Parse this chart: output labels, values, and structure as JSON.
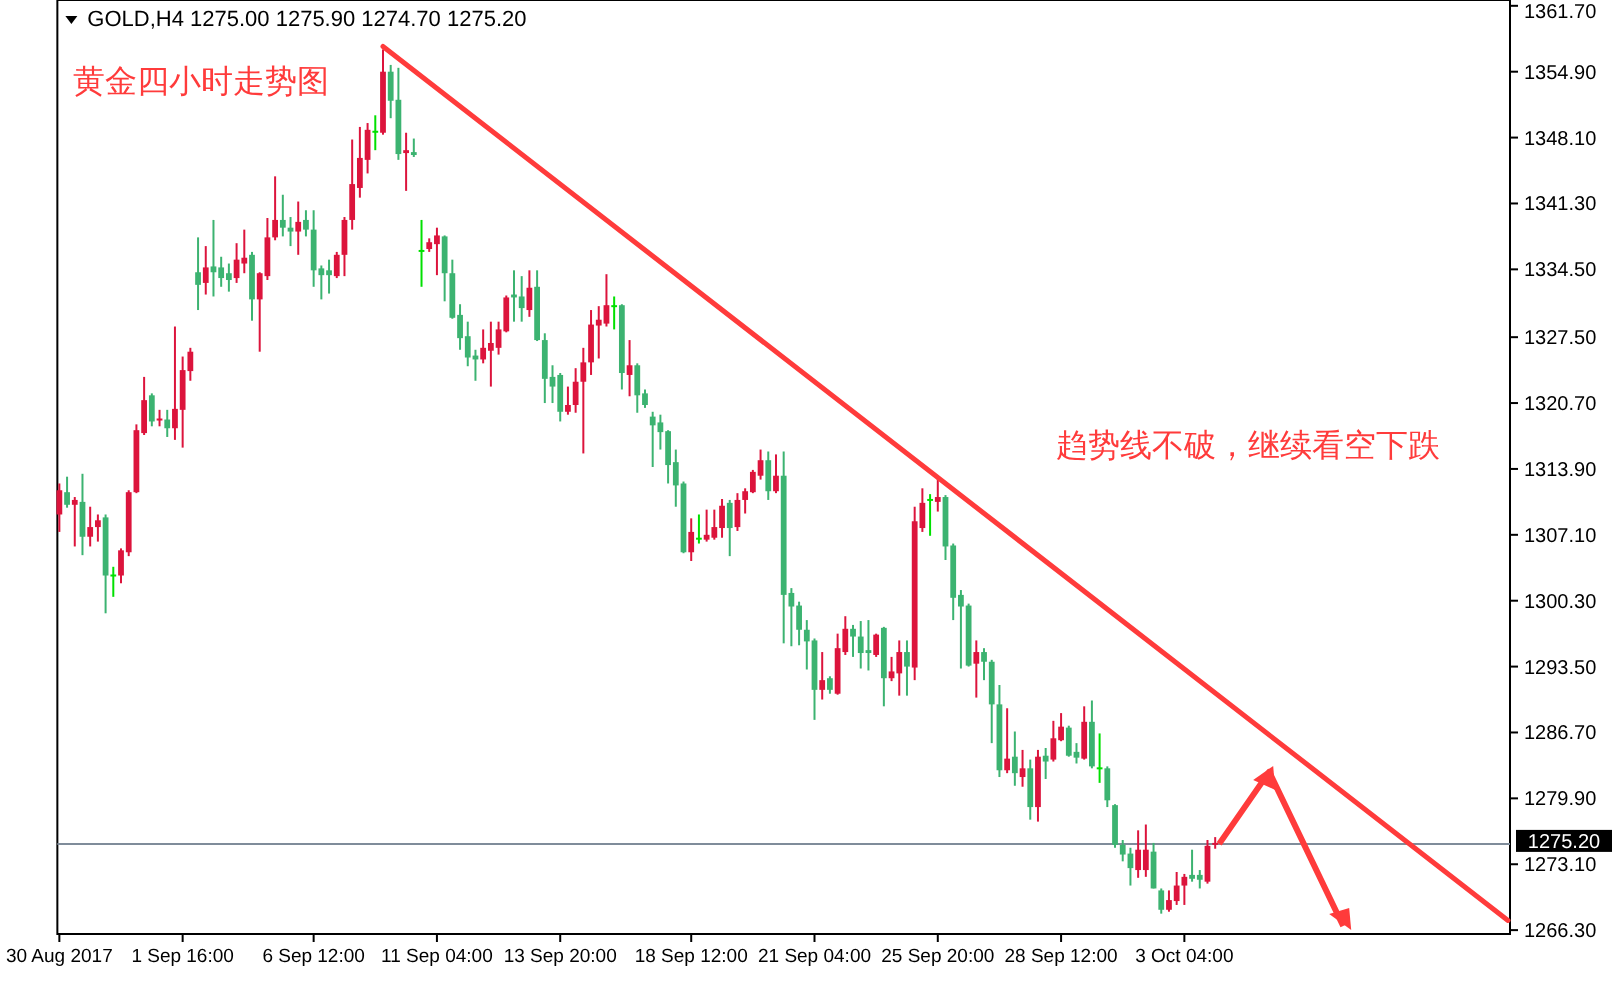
{
  "chart_data": {
    "type": "candlestick",
    "title": "黄金四小时走势图",
    "subtitle": "GOLD,H4  1275.00 1275.90 1274.70 1275.20",
    "annotations": [
      "趋势线不破，继续看空下跌"
    ],
    "categories": [
      "30 Aug 2017",
      null,
      null,
      null,
      null,
      null,
      null,
      null,
      null,
      null,
      null,
      null,
      null,
      null,
      null,
      null,
      "1 Sep 16:00",
      null,
      null,
      null,
      null,
      null,
      null,
      null,
      null,
      null,
      null,
      null,
      null,
      null,
      null,
      null,
      null,
      "6 Sep 12:00",
      null,
      null,
      null,
      null,
      null,
      null,
      null,
      null,
      null,
      null,
      null,
      null,
      null,
      null,
      null,
      "11 Sep 04:00",
      null,
      null,
      null,
      null,
      null,
      null,
      null,
      null,
      null,
      null,
      null,
      null,
      null,
      null,
      null,
      "13 Sep 20:00",
      null,
      null,
      null,
      null,
      null,
      null,
      null,
      null,
      null,
      null,
      null,
      null,
      null,
      null,
      null,
      null,
      "18 Sep 12:00",
      null,
      null,
      null,
      null,
      null,
      null,
      null,
      null,
      null,
      null,
      null,
      null,
      null,
      null,
      null,
      "21 Sep 04:00",
      null,
      null,
      null,
      null,
      null,
      null,
      null,
      null,
      null,
      null,
      null,
      null,
      null,
      null,
      null,
      "25 Sep 20:00",
      null,
      null,
      null,
      null,
      null,
      null,
      null,
      null,
      null,
      null,
      null,
      null,
      null,
      null,
      null,
      "28 Sep 12:00",
      null,
      null,
      null,
      null,
      null,
      null,
      null,
      null,
      null,
      null,
      null,
      null,
      null,
      null,
      null,
      "3 Oct 04:00",
      null,
      null,
      null,
      null,
      null,
      null,
      null,
      null,
      null,
      null,
      null,
      null,
      null,
      null,
      null,
      null,
      null,
      null,
      null,
      null,
      null,
      null,
      null,
      null,
      null,
      null,
      null,
      null,
      null,
      null,
      null,
      null,
      null,
      null,
      null,
      null,
      null,
      null,
      null,
      null,
      null,
      null
    ],
    "ohlc": [
      [
        1309.2,
        1312.4,
        1307.4,
        1311.7
      ],
      [
        1311.5,
        1313.1,
        1309.9,
        1310.2
      ],
      [
        1310.2,
        1311.0,
        1305.9,
        1310.7
      ],
      [
        1310.5,
        1313.4,
        1305.0,
        1306.9
      ],
      [
        1306.9,
        1310.0,
        1305.9,
        1307.9
      ],
      [
        1307.9,
        1309.2,
        1306.4,
        1308.6
      ],
      [
        1308.9,
        1309.2,
        1299.0,
        1302.9
      ],
      [
        1302.9,
        1303.8,
        1300.7,
        1302.9
      ],
      [
        1302.9,
        1305.7,
        1302.1,
        1305.5
      ],
      [
        1305.3,
        1311.7,
        1304.9,
        1311.5
      ],
      [
        1311.5,
        1318.5,
        1311.4,
        1317.9
      ],
      [
        1317.6,
        1323.4,
        1317.4,
        1321.0
      ],
      [
        1321.5,
        1321.7,
        1318.3,
        1318.8
      ],
      [
        1318.8,
        1320.0,
        1318.3,
        1319.0
      ],
      [
        1319.0,
        1320.0,
        1317.2,
        1318.1
      ],
      [
        1318.1,
        1328.6,
        1316.9,
        1320.1
      ],
      [
        1320.0,
        1325.5,
        1316.1,
        1324.1
      ],
      [
        1324.0,
        1326.4,
        1323.0,
        1326.0
      ],
      [
        1334.2,
        1337.8,
        1330.3,
        1332.9
      ],
      [
        1333.1,
        1336.9,
        1331.9,
        1334.7
      ],
      [
        1334.8,
        1339.6,
        1331.7,
        1334.2
      ],
      [
        1334.7,
        1335.8,
        1332.7,
        1333.6
      ],
      [
        1334.1,
        1335.1,
        1332.2,
        1333.4
      ],
      [
        1333.6,
        1337.2,
        1333.1,
        1335.5
      ],
      [
        1335.1,
        1338.6,
        1334.1,
        1335.7
      ],
      [
        1336.0,
        1336.3,
        1329.2,
        1331.4
      ],
      [
        1331.4,
        1334.2,
        1326.0,
        1334.1
      ],
      [
        1333.8,
        1339.8,
        1333.4,
        1337.8
      ],
      [
        1337.8,
        1344.1,
        1337.5,
        1339.6
      ],
      [
        1339.6,
        1342.2,
        1337.9,
        1338.8
      ],
      [
        1338.8,
        1339.9,
        1336.9,
        1338.4
      ],
      [
        1338.4,
        1341.5,
        1336.0,
        1339.4
      ],
      [
        1339.6,
        1340.6,
        1337.9,
        1338.6
      ],
      [
        1338.6,
        1340.6,
        1332.7,
        1334.4
      ],
      [
        1334.6,
        1334.9,
        1331.4,
        1333.9
      ],
      [
        1334.4,
        1335.5,
        1332.0,
        1333.9
      ],
      [
        1333.8,
        1336.3,
        1333.6,
        1336.0
      ],
      [
        1336.0,
        1339.9,
        1333.8,
        1339.6
      ],
      [
        1339.6,
        1347.9,
        1338.6,
        1343.3
      ],
      [
        1342.9,
        1349.2,
        1341.9,
        1346.0
      ],
      [
        1345.8,
        1349.6,
        1344.4,
        1348.9
      ],
      [
        1348.7,
        1350.4,
        1346.8,
        1348.7
      ],
      [
        1348.6,
        1357.2,
        1348.4,
        1354.9
      ],
      [
        1354.9,
        1355.6,
        1350.1,
        1351.9
      ],
      [
        1352.0,
        1355.3,
        1345.8,
        1346.4
      ],
      [
        1346.5,
        1348.6,
        1342.6,
        1346.8
      ],
      [
        1346.6,
        1348.0,
        1346.1,
        1346.3
      ],
      [
        1336.4,
        1339.6,
        1332.7,
        1336.4
      ],
      [
        1336.6,
        1337.7,
        1336.3,
        1337.3
      ],
      [
        1337.1,
        1338.8,
        1333.9,
        1338.0
      ],
      [
        1337.9,
        1338.0,
        1331.2,
        1334.1
      ],
      [
        1334.1,
        1335.5,
        1329.4,
        1329.5
      ],
      [
        1329.8,
        1330.9,
        1326.2,
        1327.4
      ],
      [
        1327.6,
        1329.1,
        1324.5,
        1325.4
      ],
      [
        1325.6,
        1326.2,
        1323.0,
        1325.2
      ],
      [
        1325.2,
        1328.3,
        1324.8,
        1326.4
      ],
      [
        1326.1,
        1329.1,
        1322.4,
        1326.9
      ],
      [
        1326.4,
        1329.1,
        1325.7,
        1328.3
      ],
      [
        1328.1,
        1331.8,
        1328.0,
        1331.6
      ],
      [
        1331.9,
        1334.4,
        1329.1,
        1331.6
      ],
      [
        1331.7,
        1333.8,
        1329.1,
        1330.5
      ],
      [
        1330.3,
        1334.4,
        1329.6,
        1332.6
      ],
      [
        1332.7,
        1334.4,
        1327.1,
        1327.2
      ],
      [
        1327.2,
        1327.9,
        1320.7,
        1323.2
      ],
      [
        1323.4,
        1324.6,
        1320.7,
        1322.4
      ],
      [
        1323.6,
        1323.8,
        1318.8,
        1319.8
      ],
      [
        1319.8,
        1322.4,
        1319.5,
        1320.5
      ],
      [
        1320.5,
        1324.3,
        1319.7,
        1322.9
      ],
      [
        1322.9,
        1326.4,
        1315.5,
        1324.9
      ],
      [
        1324.9,
        1330.3,
        1323.6,
        1328.8
      ],
      [
        1328.7,
        1330.7,
        1325.3,
        1329.3
      ],
      [
        1328.9,
        1334.0,
        1328.6,
        1330.8
      ],
      [
        1330.7,
        1331.7,
        1328.3,
        1330.7
      ],
      [
        1330.8,
        1330.9,
        1322.1,
        1323.8
      ],
      [
        1323.6,
        1327.2,
        1321.4,
        1324.6
      ],
      [
        1324.6,
        1324.8,
        1319.7,
        1321.5
      ],
      [
        1321.7,
        1322.1,
        1320.2,
        1320.5
      ],
      [
        1319.3,
        1319.8,
        1314.1,
        1318.4
      ],
      [
        1318.7,
        1319.5,
        1315.9,
        1317.7
      ],
      [
        1317.8,
        1317.9,
        1312.4,
        1314.3
      ],
      [
        1314.6,
        1315.9,
        1310.0,
        1312.2
      ],
      [
        1312.4,
        1312.6,
        1305.2,
        1305.3
      ],
      [
        1305.3,
        1308.8,
        1304.4,
        1307.4
      ],
      [
        1306.7,
        1309.2,
        1306.2,
        1306.7
      ],
      [
        1306.6,
        1309.7,
        1306.4,
        1307.1
      ],
      [
        1306.8,
        1309.7,
        1306.6,
        1307.9
      ],
      [
        1307.8,
        1310.8,
        1306.8,
        1310.1
      ],
      [
        1310.4,
        1310.7,
        1304.9,
        1307.8
      ],
      [
        1307.9,
        1311.4,
        1307.5,
        1310.7
      ],
      [
        1310.7,
        1311.9,
        1309.3,
        1311.6
      ],
      [
        1311.5,
        1313.8,
        1311.4,
        1313.6
      ],
      [
        1313.2,
        1315.9,
        1312.8,
        1314.8
      ],
      [
        1314.8,
        1315.7,
        1310.7,
        1311.6
      ],
      [
        1311.6,
        1315.4,
        1311.4,
        1313.2
      ],
      [
        1313.2,
        1315.7,
        1295.9,
        1300.9
      ],
      [
        1301.1,
        1301.6,
        1295.6,
        1299.7
      ],
      [
        1299.8,
        1300.2,
        1295.7,
        1297.3
      ],
      [
        1297.3,
        1298.3,
        1293.2,
        1296.1
      ],
      [
        1296.2,
        1296.4,
        1288.0,
        1291.1
      ],
      [
        1291.1,
        1295.0,
        1290.1,
        1292.1
      ],
      [
        1292.3,
        1292.5,
        1290.7,
        1291.1
      ],
      [
        1290.7,
        1296.9,
        1290.6,
        1295.4
      ],
      [
        1295.0,
        1298.7,
        1294.7,
        1297.4
      ],
      [
        1297.4,
        1297.8,
        1294.5,
        1296.6
      ],
      [
        1296.6,
        1298.2,
        1293.3,
        1294.9
      ],
      [
        1295.2,
        1298.3,
        1293.1,
        1294.9
      ],
      [
        1294.7,
        1296.9,
        1294.5,
        1296.8
      ],
      [
        1297.5,
        1297.6,
        1289.4,
        1292.3
      ],
      [
        1292.3,
        1294.5,
        1292.0,
        1293.0
      ],
      [
        1292.8,
        1296.2,
        1290.5,
        1295.0
      ],
      [
        1295.0,
        1296.2,
        1290.5,
        1293.5
      ],
      [
        1293.4,
        1310.0,
        1292.1,
        1308.5
      ],
      [
        1307.8,
        1311.9,
        1307.4,
        1310.4
      ],
      [
        1310.7,
        1311.3,
        1307.0,
        1310.7
      ],
      [
        1310.5,
        1313.1,
        1309.5,
        1311.0
      ],
      [
        1311.0,
        1311.2,
        1304.5,
        1305.9
      ],
      [
        1306.0,
        1306.2,
        1298.3,
        1300.6
      ],
      [
        1300.9,
        1301.4,
        1293.3,
        1299.7
      ],
      [
        1299.8,
        1300.0,
        1293.5,
        1293.6
      ],
      [
        1293.8,
        1296.2,
        1290.3,
        1295.0
      ],
      [
        1295.0,
        1295.4,
        1292.1,
        1294.0
      ],
      [
        1294.0,
        1294.2,
        1285.6,
        1289.6
      ],
      [
        1289.6,
        1291.6,
        1282.1,
        1282.8
      ],
      [
        1282.8,
        1289.2,
        1282.5,
        1284.0
      ],
      [
        1284.2,
        1286.8,
        1281.2,
        1282.5
      ],
      [
        1282.1,
        1284.9,
        1281.1,
        1283.0
      ],
      [
        1283.0,
        1283.9,
        1277.7,
        1279.0
      ],
      [
        1279.0,
        1284.9,
        1277.5,
        1284.2
      ],
      [
        1284.3,
        1285.1,
        1281.9,
        1283.7
      ],
      [
        1283.9,
        1287.9,
        1283.7,
        1286.1
      ],
      [
        1285.9,
        1288.7,
        1285.8,
        1287.3
      ],
      [
        1287.2,
        1287.4,
        1284.2,
        1284.3
      ],
      [
        1284.7,
        1285.6,
        1283.5,
        1284.1
      ],
      [
        1284.0,
        1289.4,
        1283.9,
        1287.8
      ],
      [
        1287.8,
        1290.0,
        1283.0,
        1283.2
      ],
      [
        1283.0,
        1286.6,
        1281.5,
        1283.0
      ],
      [
        1283.0,
        1283.2,
        1279.0,
        1279.7
      ],
      [
        1279.2,
        1279.3,
        1274.8,
        1275.1
      ],
      [
        1275.1,
        1275.6,
        1273.4,
        1274.1
      ],
      [
        1274.2,
        1274.8,
        1270.9,
        1272.7
      ],
      [
        1272.5,
        1276.6,
        1271.7,
        1274.6
      ],
      [
        1272.5,
        1277.2,
        1271.8,
        1274.6
      ],
      [
        1274.4,
        1275.3,
        1270.6,
        1270.6
      ],
      [
        1270.4,
        1270.6,
        1268.0,
        1268.4
      ],
      [
        1268.4,
        1270.4,
        1268.2,
        1269.4
      ],
      [
        1269.3,
        1272.3,
        1268.9,
        1270.9
      ],
      [
        1270.9,
        1272.1,
        1268.9,
        1271.8
      ],
      [
        1272.0,
        1274.6,
        1271.3,
        1271.6
      ],
      [
        1272.0,
        1272.5,
        1270.6,
        1271.5
      ],
      [
        1271.3,
        1275.6,
        1271.1,
        1275.0
      ],
      [
        1275.0,
        1275.9,
        1274.7,
        1275.2
      ],
      null,
      null,
      null,
      null,
      null,
      null,
      null,
      null,
      null,
      null,
      null,
      null,
      null,
      null,
      null,
      null,
      null,
      null,
      null,
      null,
      null,
      null,
      null,
      null,
      null,
      null,
      null,
      null,
      null,
      null,
      null,
      null,
      null,
      null,
      null,
      null,
      null,
      null
    ],
    "series": [
      {
        "type": "line",
        "color": "#ff3b3b",
        "values": [
          null,
          null,
          null,
          null,
          null,
          null,
          null,
          null,
          null,
          null,
          null,
          null,
          null,
          null,
          null,
          null,
          null,
          null,
          null,
          null,
          null,
          null,
          null,
          null,
          null,
          null,
          null,
          null,
          null,
          null,
          null,
          null,
          null,
          null,
          null,
          null,
          null,
          null,
          null,
          null,
          null,
          null,
          1357.5,
          null,
          null,
          null,
          null,
          null,
          null,
          null,
          null,
          null,
          null,
          null,
          null,
          null,
          null,
          null,
          null,
          null,
          null,
          null,
          null,
          null,
          null,
          null,
          null,
          null,
          null,
          null,
          null,
          null,
          null,
          null,
          null,
          null,
          null,
          null,
          null,
          null,
          null,
          null,
          null,
          null,
          null,
          null,
          null,
          null,
          null,
          null,
          null,
          null,
          null,
          null,
          null,
          null,
          null,
          null,
          null,
          null,
          null,
          null,
          null,
          null,
          null,
          null,
          null,
          null,
          null,
          null,
          null,
          null,
          null,
          null,
          null,
          null,
          null,
          null,
          null,
          null,
          null,
          null,
          null,
          null,
          null,
          null,
          null,
          null,
          null,
          null,
          null,
          null,
          null,
          null,
          null,
          null,
          null,
          null,
          null,
          null,
          null,
          null,
          null,
          null,
          null,
          null,
          null,
          null,
          null,
          null,
          null,
          null,
          null,
          null,
          null,
          null,
          null,
          null,
          null,
          null,
          null,
          null,
          null,
          null,
          null,
          null,
          null,
          null,
          null,
          null,
          null,
          null,
          null,
          null,
          null,
          null,
          null,
          null,
          null,
          null,
          null,
          null,
          null,
          null,
          null,
          null,
          null,
          null,
          1267.3
        ]
      }
    ],
    "ref_lines": [
      {
        "axis": "y",
        "value": 1275.2,
        "label": "1275.20",
        "color": "#7f8c9a"
      }
    ],
    "ylim": [
      1265.9,
      1362.3
    ],
    "yticks": [
      {
        "value": 1361.7,
        "label": "1361.70"
      },
      {
        "value": 1354.9,
        "label": "1354.90"
      },
      {
        "value": 1348.1,
        "label": "1348.10"
      },
      {
        "value": 1341.3,
        "label": "1341.30"
      },
      {
        "value": 1334.5,
        "label": "1334.50"
      },
      {
        "value": 1327.5,
        "label": "1327.50"
      },
      {
        "value": 1320.7,
        "label": "1320.70"
      },
      {
        "value": 1313.9,
        "label": "1313.90"
      },
      {
        "value": 1307.1,
        "label": "1307.10"
      },
      {
        "value": 1300.3,
        "label": "1300.30"
      },
      {
        "value": 1293.5,
        "label": "1293.50"
      },
      {
        "value": 1286.7,
        "label": "1286.70"
      },
      {
        "value": 1279.9,
        "label": "1279.90"
      },
      {
        "value": 1273.1,
        "label": "1273.10"
      },
      {
        "value": 1266.3,
        "label": "1266.30"
      }
    ]
  }
}
